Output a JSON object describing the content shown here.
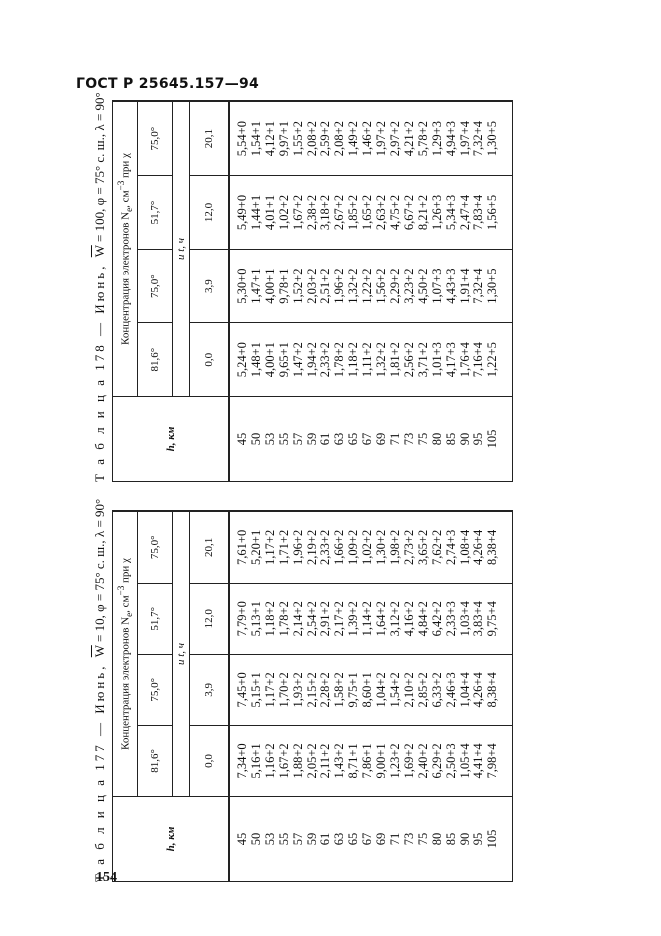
{
  "header": "ГОСТ Р 25645.157—94",
  "page_number": "154",
  "tables": [
    {
      "title_prefix": "Т а б л и ц а 178 — Июнь, ",
      "title_w": "W",
      "title_rest": " = 100, φ = 75° с. ш., λ = 90°",
      "h_label": "h, км",
      "group_label": "Концентрация электронов N",
      "group_sub": "e",
      "group_unit": ", см",
      "group_sup": "−3",
      "group_tail": " при χ",
      "time_label": "и t, ч",
      "angles": [
        "81,6°",
        "75,0°",
        "51,7°",
        "75,0°"
      ],
      "times": [
        "0,0",
        "3,9",
        "12,0",
        "20,1"
      ],
      "h": [
        "45",
        "50",
        "53",
        "55",
        "57",
        "59",
        "61",
        "63",
        "65",
        "67",
        "69",
        "71",
        "73",
        "75",
        "80",
        "85",
        "90",
        "95",
        "105"
      ],
      "columns": [
        [
          "5,24+0",
          "1,48+1",
          "4,00+1",
          "9,65+1",
          "1,47+2",
          "1,94+2",
          "2,33+2",
          "1,78+2",
          "1,18+2",
          "1,11+2",
          "1,32+2",
          "1,81+2",
          "2,56+2",
          "3,71+2",
          "1,01+3",
          "4,17+3",
          "1,76+4",
          "7,16+4",
          "1,22+5"
        ],
        [
          "5,30+0",
          "1,47+1",
          "4,00+1",
          "9,78+1",
          "1,52+2",
          "2,03+2",
          "2,51+2",
          "1,96+2",
          "1,32+2",
          "1,22+2",
          "1,56+2",
          "2,29+2",
          "3,23+2",
          "4,50+2",
          "1,07+3",
          "4,43+3",
          "1,91+4",
          "7,32+4",
          "1,30+5"
        ],
        [
          "5,49+0",
          "1,44+1",
          "4,01+1",
          "1,02+2",
          "1,67+2",
          "2,38+2",
          "3,18+2",
          "2,67+2",
          "1,85+2",
          "1,65+2",
          "2,63+2",
          "4,75+2",
          "6,67+2",
          "8,21+2",
          "1,26+3",
          "5,34+3",
          "2,47+4",
          "7,83+4",
          "1,56+5"
        ],
        [
          "5,54+0",
          "1,54+1",
          "4,12+1",
          "9,97+1",
          "1,55+2",
          "2,08+2",
          "2,59+2",
          "2,08+2",
          "1,49+2",
          "1,46+2",
          "1,97+2",
          "2,97+2",
          "4,21+2",
          "5,78+2",
          "1,29+3",
          "4,94+3",
          "1,97+4",
          "7,32+4",
          "1,30+5"
        ]
      ]
    },
    {
      "title_prefix": "Т а б л и ц а 177 — Июнь, ",
      "title_w": "W",
      "title_rest": " = 10, φ = 75° с. ш., λ = 90°",
      "h_label": "h, км",
      "group_label": "Концентрация электронов N",
      "group_sub": "e",
      "group_unit": ", см",
      "group_sup": "−3",
      "group_tail": " при χ",
      "time_label": "и t, ч",
      "angles": [
        "81,6°",
        "75,0°",
        "51,7°",
        "75,0°"
      ],
      "times": [
        "0,0",
        "3,9",
        "12,0",
        "20,1"
      ],
      "h": [
        "45",
        "50",
        "53",
        "55",
        "57",
        "59",
        "61",
        "63",
        "65",
        "67",
        "69",
        "71",
        "73",
        "75",
        "80",
        "85",
        "90",
        "95",
        "105"
      ],
      "columns": [
        [
          "7,34+0",
          "5,16+1",
          "1,16+2",
          "1,67+2",
          "1,88+2",
          "2,05+2",
          "2,11+2",
          "1,43+2",
          "8,71+1",
          "7,86+1",
          "9,00+1",
          "1,23+2",
          "1,69+2",
          "2,40+2",
          "6,29+2",
          "2,50+3",
          "1,05+4",
          "4,41+4",
          "7,98+4"
        ],
        [
          "7,45+0",
          "5,15+1",
          "1,17+2",
          "1,70+2",
          "1,93+2",
          "2,15+2",
          "2,28+2",
          "1,58+2",
          "9,75+1",
          "8,60+1",
          "1,04+2",
          "1,54+2",
          "2,10+2",
          "2,85+2",
          "6,33+2",
          "2,46+3",
          "1,04+4",
          "4,26+4",
          "8,38+4"
        ],
        [
          "7,79+0",
          "5,13+1",
          "1,18+2",
          "1,78+2",
          "2,14+2",
          "2,54+2",
          "2,91+2",
          "2,17+2",
          "1,39+2",
          "1,14+2",
          "1,64+2",
          "3,12+2",
          "4,16+2",
          "4,84+2",
          "6,42+2",
          "2,33+3",
          "1,03+4",
          "3,83+4",
          "9,75+4"
        ],
        [
          "7,61+0",
          "5,20+1",
          "1,17+2",
          "1,71+2",
          "1,96+2",
          "2,19+2",
          "2,33+2",
          "1,66+2",
          "1,09+2",
          "1,02+2",
          "1,30+2",
          "1,98+2",
          "2,73+2",
          "3,65+2",
          "7,62+2",
          "2,74+3",
          "1,08+4",
          "4,26+4",
          "8,38+4"
        ]
      ]
    }
  ]
}
